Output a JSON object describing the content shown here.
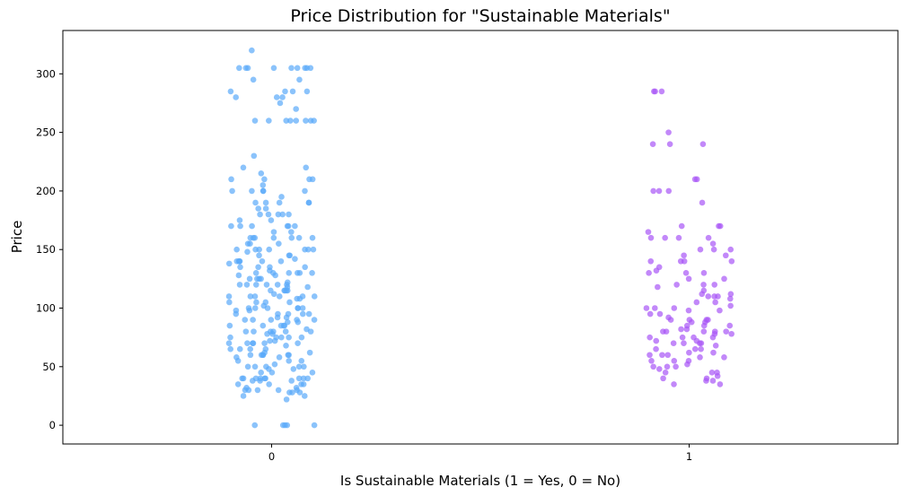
{
  "chart_data": {
    "type": "scatter",
    "subtype": "strip/jitter",
    "title": "Price Distribution for \"Sustainable Materials\"",
    "xlabel": "Is Sustainable Materials (1 = Yes, 0 = No)",
    "ylabel": "Price",
    "categories": [
      "0",
      "1"
    ],
    "yticks": [
      0,
      50,
      100,
      150,
      200,
      250,
      300
    ],
    "ylim": [
      -16,
      337
    ],
    "grid": false,
    "legend": "none",
    "colors": {
      "0": "#5aaafa",
      "1": "#a855f7"
    },
    "series": [
      {
        "category": "0",
        "values": [
          0,
          0,
          0,
          0,
          0,
          22,
          25,
          25,
          28,
          28,
          28,
          30,
          30,
          30,
          30,
          30,
          32,
          32,
          35,
          35,
          35,
          35,
          38,
          38,
          38,
          40,
          40,
          40,
          40,
          40,
          40,
          40,
          40,
          40,
          45,
          45,
          45,
          48,
          48,
          50,
          50,
          50,
          50,
          50,
          52,
          55,
          55,
          55,
          58,
          58,
          60,
          60,
          60,
          60,
          60,
          60,
          62,
          62,
          65,
          65,
          65,
          65,
          68,
          70,
          70,
          70,
          70,
          70,
          70,
          72,
          72,
          75,
          75,
          75,
          75,
          75,
          78,
          78,
          80,
          80,
          80,
          80,
          80,
          80,
          82,
          85,
          85,
          85,
          85,
          85,
          88,
          88,
          90,
          90,
          90,
          90,
          90,
          92,
          92,
          95,
          95,
          95,
          95,
          95,
          98,
          98,
          100,
          100,
          100,
          100,
          100,
          100,
          102,
          105,
          105,
          105,
          105,
          108,
          108,
          110,
          110,
          110,
          110,
          110,
          110,
          112,
          115,
          115,
          115,
          115,
          115,
          118,
          118,
          120,
          120,
          120,
          120,
          120,
          120,
          122,
          125,
          125,
          125,
          125,
          128,
          128,
          130,
          130,
          130,
          130,
          130,
          130,
          132,
          135,
          135,
          135,
          135,
          138,
          140,
          140,
          140,
          140,
          140,
          140,
          142,
          145,
          145,
          145,
          148,
          150,
          150,
          150,
          150,
          150,
          150,
          150,
          155,
          155,
          155,
          160,
          160,
          160,
          160,
          160,
          160,
          160,
          165,
          165,
          170,
          170,
          170,
          170,
          170,
          170,
          175,
          175,
          180,
          180,
          180,
          180,
          180,
          185,
          185,
          190,
          190,
          190,
          190,
          190,
          195,
          200,
          200,
          200,
          200,
          200,
          205,
          210,
          210,
          210,
          210,
          215,
          220,
          220,
          230,
          260,
          260,
          260,
          260,
          260,
          260,
          260,
          260,
          270,
          275,
          280,
          280,
          280,
          285,
          285,
          285,
          285,
          295,
          295,
          305,
          305,
          305,
          305,
          305,
          305,
          305,
          305,
          305,
          320
        ]
      },
      {
        "category": "1",
        "values": [
          35,
          35,
          38,
          38,
          40,
          40,
          42,
          45,
          45,
          45,
          48,
          50,
          50,
          50,
          52,
          55,
          55,
          55,
          58,
          58,
          60,
          60,
          60,
          62,
          62,
          65,
          65,
          65,
          68,
          70,
          70,
          70,
          70,
          72,
          72,
          75,
          75,
          75,
          75,
          78,
          78,
          80,
          80,
          80,
          80,
          80,
          82,
          82,
          85,
          85,
          85,
          88,
          88,
          90,
          90,
          90,
          90,
          92,
          95,
          95,
          98,
          98,
          100,
          100,
          100,
          102,
          105,
          105,
          108,
          110,
          110,
          110,
          112,
          112,
          115,
          118,
          120,
          120,
          120,
          125,
          125,
          130,
          130,
          130,
          132,
          135,
          140,
          140,
          140,
          140,
          145,
          145,
          150,
          150,
          150,
          155,
          160,
          160,
          160,
          160,
          165,
          170,
          170,
          170,
          190,
          200,
          200,
          200,
          210,
          210,
          240,
          240,
          240,
          250,
          285,
          285,
          285
        ]
      }
    ]
  }
}
